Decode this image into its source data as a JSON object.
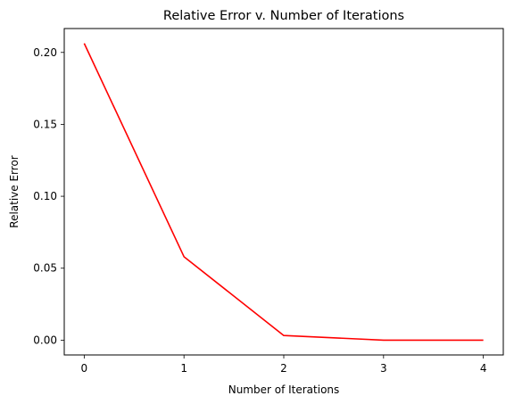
{
  "chart_data": {
    "type": "line",
    "title": "Relative Error v. Number of Iterations",
    "xlabel": "Number of Iterations",
    "ylabel": "Relative Error",
    "xlim": [
      -0.2,
      4.2
    ],
    "ylim": [
      -0.0103,
      0.2166
    ],
    "x_ticks": [
      0,
      1,
      2,
      3,
      4
    ],
    "x_tick_labels": [
      "0",
      "1",
      "2",
      "3",
      "4"
    ],
    "y_ticks": [
      0.0,
      0.05,
      0.1,
      0.15,
      0.2
    ],
    "y_tick_labels": [
      "0.00",
      "0.05",
      "0.10",
      "0.15",
      "0.20"
    ],
    "grid": false,
    "legend": "none",
    "series": [
      {
        "x": [
          0,
          1,
          2,
          3,
          4
        ],
        "values": [
          0.2063,
          0.058,
          0.0032,
          0.0,
          0.0
        ],
        "color": "#ff0000"
      }
    ]
  }
}
